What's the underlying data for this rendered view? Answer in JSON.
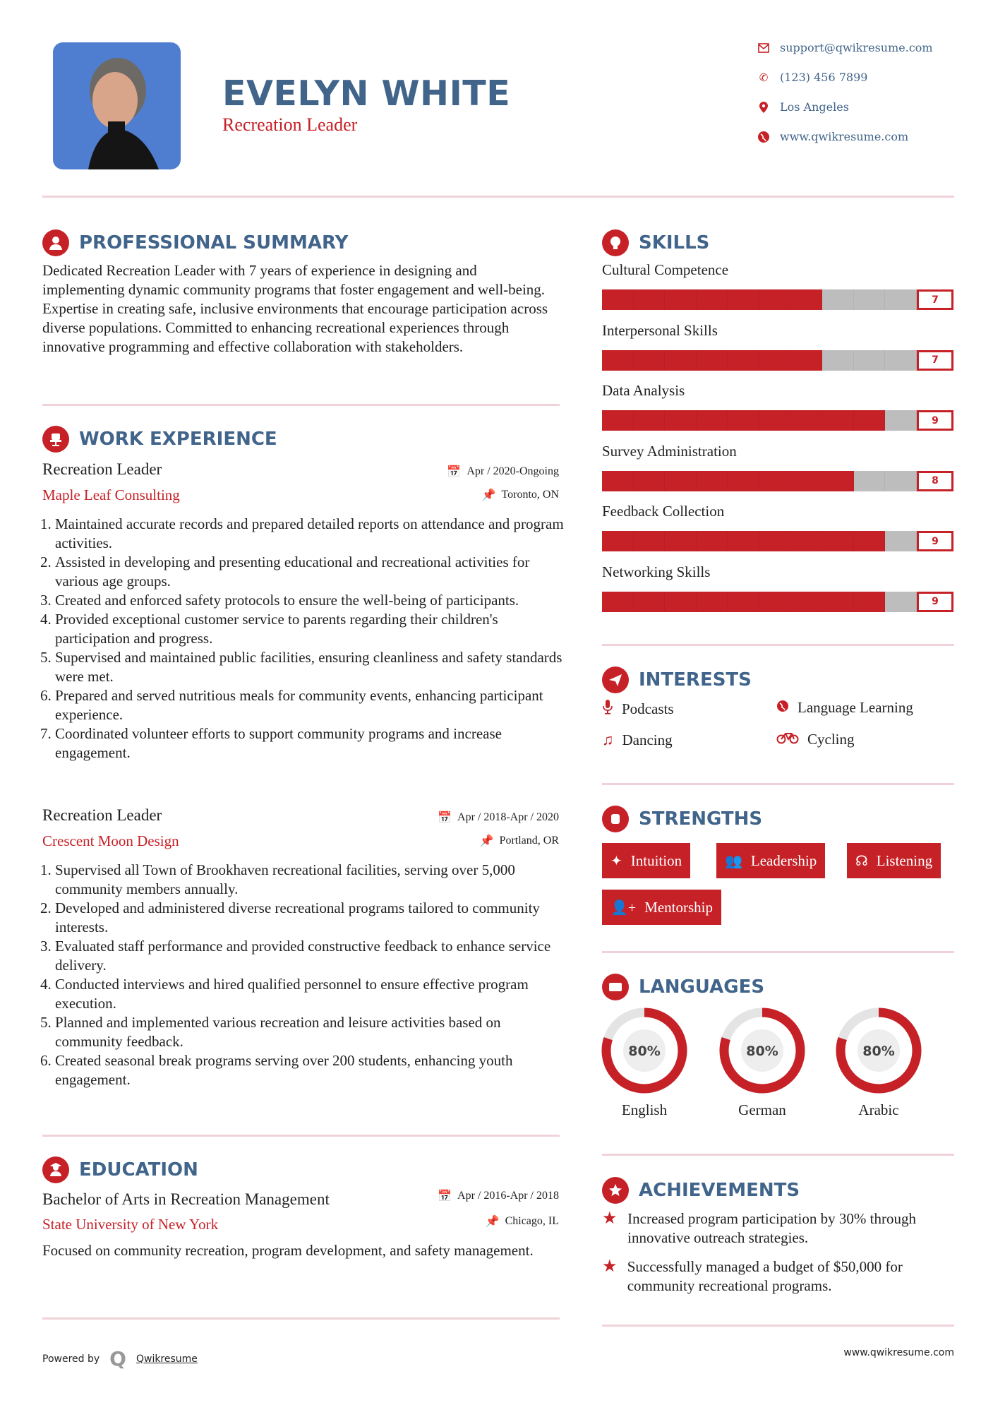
{
  "header": {
    "name": "EVELYN WHITE",
    "title": "Recreation Leader",
    "contacts": [
      {
        "icon": "envelope-icon",
        "text": "support@qwikresume.com"
      },
      {
        "icon": "phone-icon",
        "text": "(123) 456 7899"
      },
      {
        "icon": "map-marker-icon",
        "text": "Los Angeles"
      },
      {
        "icon": "globe-icon",
        "text": "www.qwikresume.com"
      }
    ]
  },
  "colors": {
    "accent": "#c62127",
    "heading": "#41648a",
    "divider": "#f0d3d9"
  },
  "summary": {
    "heading": "PROFESSIONAL SUMMARY",
    "text": "Dedicated Recreation Leader with 7 years of experience in designing and implementing dynamic community programs that foster engagement and well-being. Expertise in creating safe, inclusive environments that encourage participation across diverse populations. Committed to enhancing recreational experiences through innovative programming and effective collaboration with stakeholders."
  },
  "experience": {
    "heading": "WORK EXPERIENCE",
    "jobs": [
      {
        "title": "Recreation Leader",
        "company": "Maple Leaf Consulting",
        "date": "Apr / 2020-Ongoing",
        "location": "Toronto, ON",
        "items": [
          "Maintained accurate records and prepared detailed reports on attendance and program activities.",
          "Assisted in developing and presenting educational and recreational activities for various age groups.",
          "Created and enforced safety protocols to ensure the well-being of participants.",
          "Provided exceptional customer service to parents regarding their children's participation and progress.",
          "Supervised and maintained public facilities, ensuring cleanliness and safety standards were met.",
          "Prepared and served nutritious meals for community events, enhancing participant experience.",
          "Coordinated volunteer efforts to support community programs and increase engagement."
        ]
      },
      {
        "title": "Recreation Leader",
        "company": "Crescent Moon Design",
        "date": "Apr / 2018-Apr / 2020",
        "location": "Portland, OR",
        "items": [
          "Supervised all Town of Brookhaven recreational facilities, serving over 5,000 community members annually.",
          "Developed and administered diverse recreational programs tailored to community interests.",
          "Evaluated staff performance and provided constructive feedback to enhance service delivery.",
          "Conducted interviews and hired qualified personnel to ensure effective program execution.",
          "Planned and implemented various recreation and leisure activities based on community feedback.",
          "Created seasonal break programs serving over 200 students, enhancing youth engagement."
        ]
      }
    ]
  },
  "education": {
    "heading": "EDUCATION",
    "degree": "Bachelor of Arts in Recreation Management",
    "school": "State University of New York",
    "date": "Apr / 2016-Apr / 2018",
    "location": "Chicago, IL",
    "text": "Focused on community recreation, program development, and safety management."
  },
  "skills": {
    "heading": "SKILLS",
    "max": 10,
    "items": [
      {
        "name": "Cultural Competence",
        "level": 7
      },
      {
        "name": "Interpersonal Skills",
        "level": 7
      },
      {
        "name": "Data Analysis",
        "level": 9
      },
      {
        "name": "Survey Administration",
        "level": 8
      },
      {
        "name": "Feedback Collection",
        "level": 9
      },
      {
        "name": "Networking Skills",
        "level": 9
      }
    ]
  },
  "interests": {
    "heading": "INTERESTS",
    "items": [
      {
        "icon": "microphone-icon",
        "label": "Podcasts"
      },
      {
        "icon": "globe-icon",
        "label": "Language Learning"
      },
      {
        "icon": "music-note-icon",
        "label": "Dancing"
      },
      {
        "icon": "bicycle-icon",
        "label": "Cycling"
      }
    ]
  },
  "strengths": {
    "heading": "STRENGTHS",
    "items": [
      {
        "icon": "magic-wand-icon",
        "label": "Intuition"
      },
      {
        "icon": "users-icon",
        "label": "Leadership"
      },
      {
        "icon": "headphones-icon",
        "label": "Listening"
      },
      {
        "icon": "user-plus-icon",
        "label": "Mentorship"
      }
    ]
  },
  "languages": {
    "heading": "LANGUAGES",
    "items": [
      {
        "name": "English",
        "percent": 80,
        "label": "80%"
      },
      {
        "name": "German",
        "percent": 80,
        "label": "80%"
      },
      {
        "name": "Arabic",
        "percent": 80,
        "label": "80%"
      }
    ]
  },
  "achievements": {
    "heading": "ACHIEVEMENTS",
    "items": [
      "Increased program participation by 30% through innovative outreach strategies.",
      "Successfully managed a budget of $50,000 for community recreational programs."
    ]
  },
  "footer": {
    "powered": "Powered by",
    "brand": "Qwikresume",
    "url": "www.qwikresume.com"
  }
}
